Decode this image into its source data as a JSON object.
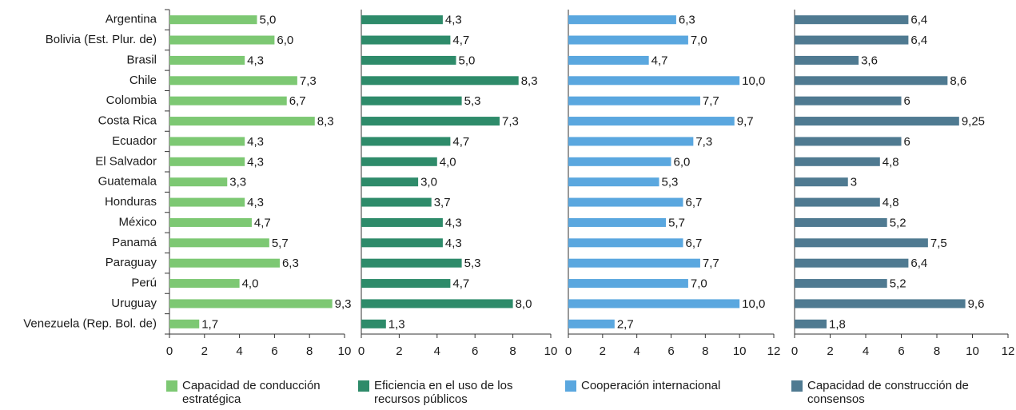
{
  "chart_data": [
    {
      "type": "bar",
      "orientation": "horizontal",
      "name": "Capacidad de conducción estratégica",
      "color": "#7dc873",
      "categories": [
        "Argentina",
        "Bolivia (Est. Plur. de)",
        "Brasil",
        "Chile",
        "Colombia",
        "Costa Rica",
        "Ecuador",
        "El Salvador",
        "Guatemala",
        "Honduras",
        "México",
        "Panamá",
        "Paraguay",
        "Perú",
        "Uruguay",
        "Venezuela (Rep. Bol. de)"
      ],
      "values": [
        5.0,
        6.0,
        4.3,
        7.3,
        6.7,
        8.3,
        4.3,
        4.3,
        3.3,
        4.3,
        4.7,
        5.7,
        6.3,
        4.0,
        9.3,
        1.7
      ],
      "value_labels": [
        "5,0",
        "6,0",
        "4,3",
        "7,3",
        "6,7",
        "8,3",
        "4,3",
        "4,3",
        "3,3",
        "4,3",
        "4,7",
        "5,7",
        "6,3",
        "4,0",
        "9,3",
        "1,7"
      ],
      "xlim": [
        0,
        10
      ],
      "xticks": [
        0,
        2,
        4,
        6,
        8,
        10
      ]
    },
    {
      "type": "bar",
      "orientation": "horizontal",
      "name": "Eficiencia en el uso de los recursos públicos",
      "color": "#2e8b6a",
      "values": [
        4.3,
        4.7,
        5.0,
        8.3,
        5.3,
        7.3,
        4.7,
        4.0,
        3.0,
        3.7,
        4.3,
        4.3,
        5.3,
        4.7,
        8.0,
        1.3
      ],
      "value_labels": [
        "4,3",
        "4,7",
        "5,0",
        "8,3",
        "5,3",
        "7,3",
        "4,7",
        "4,0",
        "3,0",
        "3,7",
        "4,3",
        "4,3",
        "5,3",
        "4,7",
        "8,0",
        "1,3"
      ],
      "xlim": [
        0,
        10
      ],
      "xticks": [
        0,
        2,
        4,
        6,
        8,
        10
      ]
    },
    {
      "type": "bar",
      "orientation": "horizontal",
      "name": "Cooperación internacional",
      "color": "#5aa7df",
      "values": [
        6.3,
        7.0,
        4.7,
        10.0,
        7.7,
        9.7,
        7.3,
        6.0,
        5.3,
        6.7,
        5.7,
        6.7,
        7.7,
        7.0,
        10.0,
        2.7
      ],
      "value_labels": [
        "6,3",
        "7,0",
        "4,7",
        "10,0",
        "7,7",
        "9,7",
        "7,3",
        "6,0",
        "5,3",
        "6,7",
        "5,7",
        "6,7",
        "7,7",
        "7,0",
        "10,0",
        "2,7"
      ],
      "xlim": [
        0,
        12
      ],
      "xticks": [
        0,
        2,
        4,
        6,
        8,
        10,
        12
      ]
    },
    {
      "type": "bar",
      "orientation": "horizontal",
      "name": "Capacidad de construcción de consensos",
      "color": "#4f7a91",
      "values": [
        6.4,
        6.4,
        3.6,
        8.6,
        6,
        9.25,
        6,
        4.8,
        3,
        4.8,
        5.2,
        7.5,
        6.4,
        5.2,
        9.6,
        1.8
      ],
      "value_labels": [
        "6,4",
        "6,4",
        "3,6",
        "8,6",
        "6",
        "9,25",
        "6",
        "4,8",
        "3",
        "4,8",
        "5,2",
        "7,5",
        "6,4",
        "5,2",
        "9,6",
        "1,8"
      ],
      "xlim": [
        0,
        12
      ],
      "xticks": [
        0,
        2,
        4,
        6,
        8,
        10,
        12
      ]
    }
  ]
}
